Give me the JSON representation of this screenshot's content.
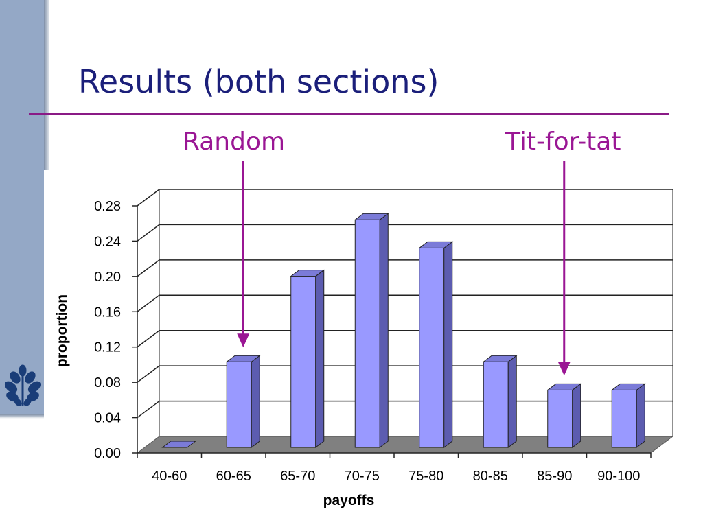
{
  "slide": {
    "title": "Results (both sections)",
    "annotations": {
      "random": "Random",
      "tit_for_tat": "Tit-for-tat"
    },
    "logo_icon": "oak-leaf-seal-icon"
  },
  "colors": {
    "title": "#1b1f7a",
    "accent": "#9a1694",
    "sidebar": "#94a8c6",
    "bar_front": "#9999ff",
    "bar_side": "#5c5cb0",
    "bar_top": "#7b7bd8",
    "floor": "#808080"
  },
  "chart_data": {
    "type": "bar",
    "style": "3d",
    "categories": [
      "40-60",
      "60-65",
      "65-70",
      "70-75",
      "75-80",
      "80-85",
      "85-90",
      "90-100"
    ],
    "values": [
      0.0,
      0.097,
      0.194,
      0.258,
      0.226,
      0.097,
      0.065,
      0.065
    ],
    "xlabel": "payoffs",
    "ylabel": "proportion",
    "ylim": [
      0,
      0.28
    ],
    "yticks": [
      "0.00",
      "0.04",
      "0.08",
      "0.12",
      "0.16",
      "0.20",
      "0.24",
      "0.28"
    ],
    "grid": true,
    "arrows": [
      {
        "label": "Random",
        "category": "60-65"
      },
      {
        "label": "Tit-for-tat",
        "category": "85-90"
      }
    ]
  }
}
